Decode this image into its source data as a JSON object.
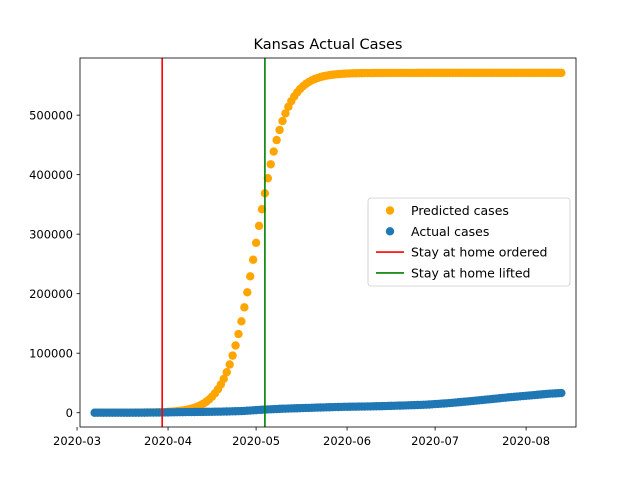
{
  "chart_data": {
    "type": "scatter",
    "title": "Kansas Actual Cases",
    "xlabel": "",
    "ylabel": "",
    "xlim": [
      "2020-03-02",
      "2020-08-18"
    ],
    "ylim": [
      -24000,
      596000
    ],
    "x_ticks": [
      "2020-03",
      "2020-04",
      "2020-05",
      "2020-06",
      "2020-07",
      "2020-08"
    ],
    "y_ticks": [
      0,
      100000,
      200000,
      300000,
      400000,
      500000
    ],
    "y_tick_labels": [
      "0",
      "100000",
      "200000",
      "300000",
      "400000",
      "500000"
    ],
    "grid": false,
    "legend_placement": "center-right",
    "series": [
      {
        "name": "Predicted cases",
        "kind": "scatter",
        "color": "#ffa500",
        "model": {
          "form": "logistic",
          "start": "2020-03-07",
          "end": "2020-08-13",
          "capacity": 571000,
          "midpoint": "2020-05-01",
          "rate_per_day": 0.2
        }
      },
      {
        "name": "Actual cases",
        "kind": "scatter",
        "color": "#1f77b4",
        "points": [
          [
            "2020-03-07",
            1
          ],
          [
            "2020-03-15",
            11
          ],
          [
            "2020-03-22",
            60
          ],
          [
            "2020-03-29",
            330
          ],
          [
            "2020-04-05",
            900
          ],
          [
            "2020-04-12",
            1300
          ],
          [
            "2020-04-19",
            1800
          ],
          [
            "2020-04-26",
            2700
          ],
          [
            "2020-05-03",
            5000
          ],
          [
            "2020-05-10",
            6700
          ],
          [
            "2020-05-17",
            7800
          ],
          [
            "2020-05-24",
            8900
          ],
          [
            "2020-05-31",
            9900
          ],
          [
            "2020-06-07",
            10400
          ],
          [
            "2020-06-14",
            11200
          ],
          [
            "2020-06-21",
            12200
          ],
          [
            "2020-06-28",
            13500
          ],
          [
            "2020-07-05",
            15800
          ],
          [
            "2020-07-12",
            18900
          ],
          [
            "2020-07-19",
            22300
          ],
          [
            "2020-07-26",
            25800
          ],
          [
            "2020-08-02",
            28800
          ],
          [
            "2020-08-09",
            32000
          ],
          [
            "2020-08-13",
            33000
          ]
        ]
      },
      {
        "name": "Stay at home ordered",
        "kind": "vline",
        "color": "#ff0000",
        "x": "2020-03-30"
      },
      {
        "name": "Stay at home lifted",
        "kind": "vline",
        "color": "#008000",
        "x": "2020-05-04"
      }
    ]
  }
}
